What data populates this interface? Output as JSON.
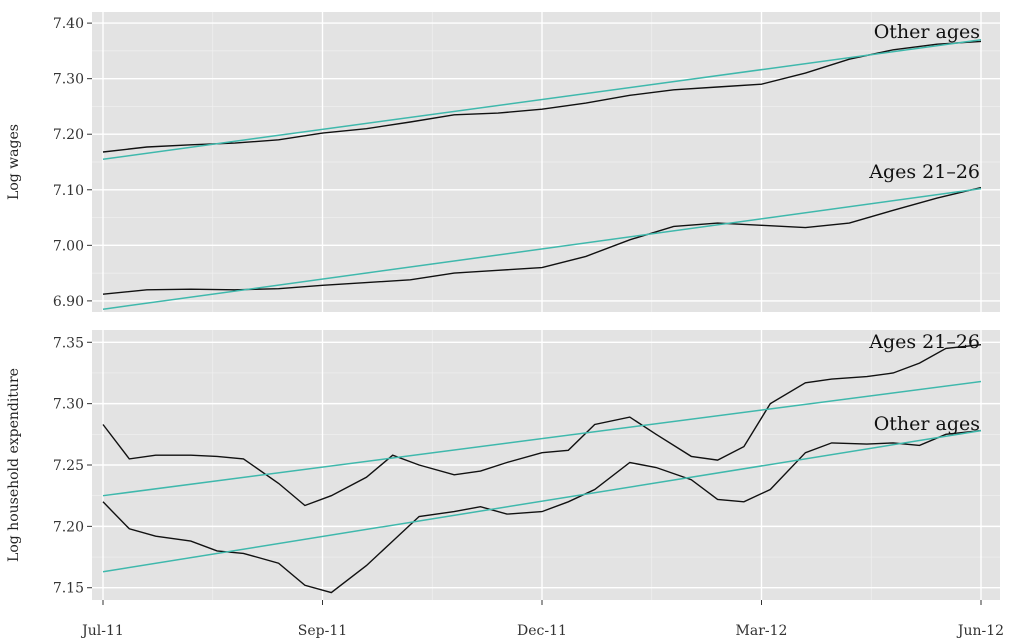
{
  "chart_data": [
    {
      "type": "line",
      "xlabel": "",
      "ylabel": "Log wages",
      "x_ticks": [
        "Jul-11",
        "Sep-11",
        "Dec-11",
        "Mar-12",
        "Jun-12"
      ],
      "ylim": [
        6.88,
        7.42
      ],
      "y_ticks": [
        6.9,
        7.0,
        7.1,
        7.2,
        7.3,
        7.4
      ],
      "y_tick_labels": [
        "6.90",
        "7.00",
        "7.10",
        "7.20",
        "7.30",
        "7.40"
      ],
      "grid": true,
      "series": [
        {
          "name": "Other ages",
          "x": [
            0,
            0.05,
            0.1,
            0.15,
            0.2,
            0.25,
            0.3,
            0.35,
            0.4,
            0.45,
            0.5,
            0.55,
            0.6,
            0.65,
            0.7,
            0.75,
            0.8,
            0.85,
            0.9,
            0.95,
            1
          ],
          "values": [
            7.168,
            7.177,
            7.181,
            7.184,
            7.19,
            7.202,
            7.21,
            7.222,
            7.235,
            7.238,
            7.245,
            7.256,
            7.27,
            7.28,
            7.285,
            7.29,
            7.31,
            7.335,
            7.352,
            7.362,
            7.367
          ],
          "trend": [
            7.155,
            7.37
          ]
        },
        {
          "name": "Ages 21–26",
          "x": [
            0,
            0.05,
            0.1,
            0.15,
            0.2,
            0.25,
            0.3,
            0.35,
            0.4,
            0.45,
            0.5,
            0.55,
            0.6,
            0.65,
            0.7,
            0.75,
            0.8,
            0.85,
            0.9,
            0.95,
            1
          ],
          "values": [
            6.912,
            6.92,
            6.921,
            6.92,
            6.922,
            6.928,
            6.933,
            6.938,
            6.95,
            6.955,
            6.96,
            6.98,
            7.01,
            7.034,
            7.04,
            7.036,
            7.032,
            7.04,
            7.063,
            7.085,
            7.104
          ],
          "trend": [
            6.885,
            7.102
          ]
        }
      ]
    },
    {
      "type": "line",
      "xlabel": "",
      "ylabel": "Log household expenditure",
      "x_ticks": [
        "Jul-11",
        "Sep-11",
        "Dec-11",
        "Mar-12",
        "Jun-12"
      ],
      "ylim": [
        7.14,
        7.36
      ],
      "y_ticks": [
        7.15,
        7.2,
        7.25,
        7.3,
        7.35
      ],
      "y_tick_labels": [
        "7.15",
        "7.20",
        "7.25",
        "7.30",
        "7.35"
      ],
      "grid": true,
      "series": [
        {
          "name": "Ages 21–26",
          "x": [
            0,
            0.03,
            0.06,
            0.1,
            0.13,
            0.16,
            0.2,
            0.23,
            0.26,
            0.3,
            0.33,
            0.36,
            0.4,
            0.43,
            0.46,
            0.5,
            0.53,
            0.56,
            0.6,
            0.63,
            0.67,
            0.7,
            0.73,
            0.76,
            0.8,
            0.83,
            0.87,
            0.9,
            0.93,
            0.96,
            1
          ],
          "values": [
            7.283,
            7.255,
            7.258,
            7.258,
            7.257,
            7.255,
            7.235,
            7.217,
            7.225,
            7.24,
            7.258,
            7.25,
            7.242,
            7.245,
            7.252,
            7.26,
            7.262,
            7.283,
            7.289,
            7.275,
            7.257,
            7.254,
            7.265,
            7.3,
            7.317,
            7.32,
            7.322,
            7.325,
            7.333,
            7.345,
            7.348
          ],
          "trend": [
            7.225,
            7.318
          ]
        },
        {
          "name": "Other ages",
          "x": [
            0,
            0.03,
            0.06,
            0.1,
            0.13,
            0.16,
            0.2,
            0.23,
            0.26,
            0.3,
            0.33,
            0.36,
            0.4,
            0.43,
            0.46,
            0.5,
            0.53,
            0.56,
            0.6,
            0.63,
            0.67,
            0.7,
            0.73,
            0.76,
            0.8,
            0.83,
            0.87,
            0.9,
            0.93,
            0.96,
            1
          ],
          "values": [
            7.22,
            7.198,
            7.192,
            7.188,
            7.18,
            7.178,
            7.17,
            7.152,
            7.146,
            7.168,
            7.188,
            7.208,
            7.212,
            7.216,
            7.21,
            7.212,
            7.22,
            7.23,
            7.252,
            7.248,
            7.238,
            7.222,
            7.22,
            7.23,
            7.26,
            7.268,
            7.267,
            7.268,
            7.266,
            7.275,
            7.278
          ],
          "trend": [
            7.163,
            7.278
          ]
        }
      ]
    }
  ]
}
